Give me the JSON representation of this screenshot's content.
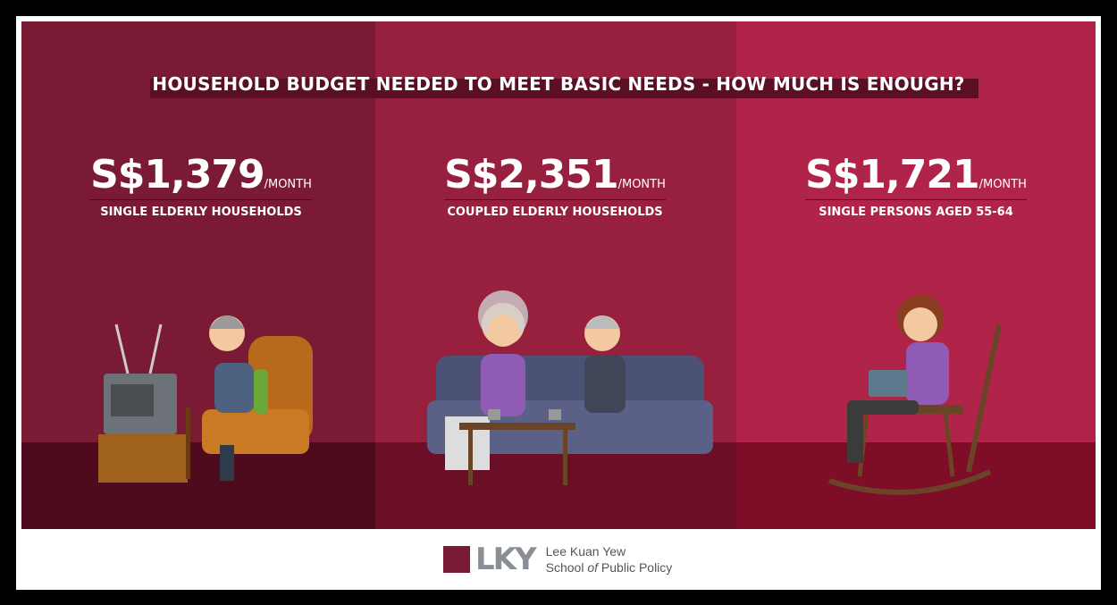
{
  "header": {
    "title": "HOUSEHOLD BUDGET NEEDED TO MEET BASIC NEEDS - HOW MUCH IS ENOUGH?"
  },
  "panels": [
    {
      "amount": "S$1,379",
      "unit": "/MONTH",
      "label": "SINGLE ELDERLY HOUSEHOLDS"
    },
    {
      "amount": "S$2,351",
      "unit": "/MONTH",
      "label": "COUPLED ELDERLY HOUSEHOLDS"
    },
    {
      "amount": "S$1,721",
      "unit": "/MONTH",
      "label": "SINGLE PERSONS AGED 55-64"
    }
  ],
  "footer": {
    "logo_mark": "LKY",
    "line1": "Lee Kuan Yew",
    "line2_start": "School",
    "line2_italic": "of",
    "line2_end": "Public Policy"
  }
}
